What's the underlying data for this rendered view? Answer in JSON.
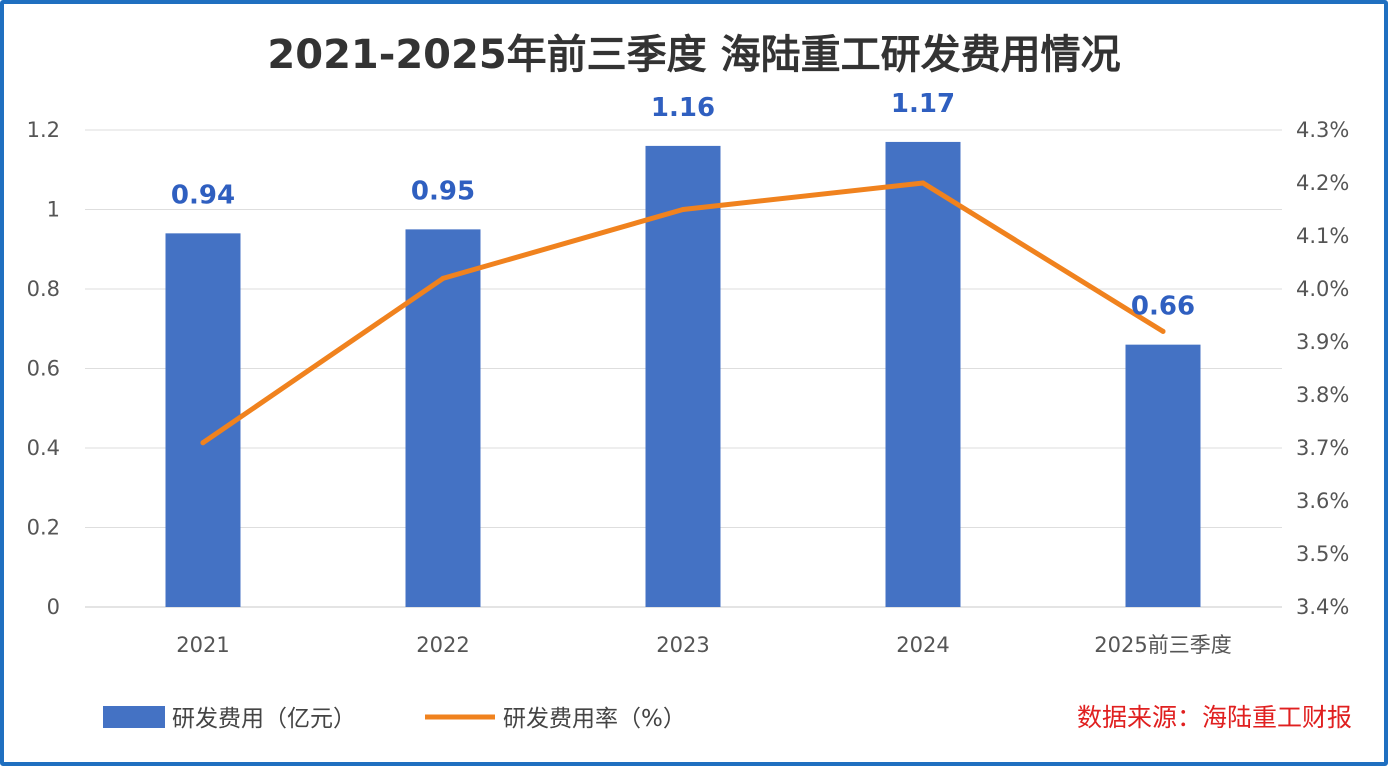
{
  "chart_data": {
    "type": "bar",
    "title": "2021-2025年前三季度 海陆重工研发费用情况",
    "categories": [
      "2021",
      "2022",
      "2023",
      "2024",
      "2025前三季度"
    ],
    "series": [
      {
        "name": "研发费用（亿元）",
        "type": "bar",
        "axis": "left",
        "values": [
          0.94,
          0.95,
          1.16,
          1.17,
          0.66
        ],
        "labels": [
          "0.94",
          "0.95",
          "1.16",
          "1.17",
          "0.66"
        ],
        "color": "#4472c4"
      },
      {
        "name": "研发费用率（%）",
        "type": "line",
        "axis": "right",
        "values": [
          3.71,
          4.02,
          4.15,
          4.2,
          3.92
        ],
        "color": "#f0821e"
      }
    ],
    "y_left": {
      "range": [
        0,
        1.2
      ],
      "ticks": [
        "0",
        "0.2",
        "0.4",
        "0.6",
        "0.8",
        "1",
        "1.2"
      ]
    },
    "y_right": {
      "range": [
        3.4,
        4.3
      ],
      "ticks": [
        "3.4%",
        "3.5%",
        "3.6%",
        "3.7%",
        "3.8%",
        "3.9%",
        "4.0%",
        "4.1%",
        "4.2%",
        "4.3%"
      ]
    },
    "grid": true,
    "legend_position": "bottom-left",
    "source": "数据来源：海陆重工财报"
  }
}
